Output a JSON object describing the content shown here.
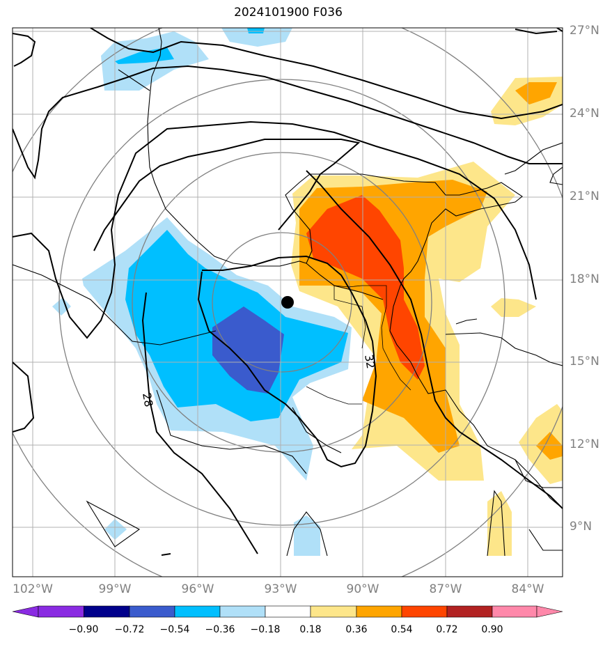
{
  "title": "2024101900 F036",
  "map": {
    "lat_labels": [
      "27°N",
      "24°N",
      "21°N",
      "18°N",
      "15°N",
      "12°N",
      "9°N"
    ],
    "lon_labels": [
      "102°W",
      "99°W",
      "96°W",
      "93°W",
      "90°W",
      "87°W",
      "84°W"
    ],
    "contour_labels": [
      "28",
      "32"
    ],
    "storm_center": {
      "lat": 17.1,
      "lon": -92.7
    }
  },
  "colorbar": {
    "labels": [
      "−0.90",
      "−0.72",
      "−0.54",
      "−0.36",
      "−0.18",
      "0.18",
      "0.36",
      "0.54",
      "0.72",
      "0.90"
    ],
    "colors": [
      "#8a2be2",
      "#00008b",
      "#3a5bcd",
      "#00bfff",
      "#b0e0f8",
      "#ffffff",
      "#fde68a",
      "#ffa500",
      "#ff4500",
      "#b22222",
      "#ff88aa"
    ]
  }
}
